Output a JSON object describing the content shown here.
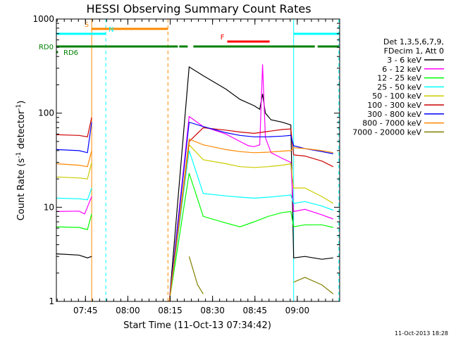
{
  "chart_data": {
    "type": "line",
    "title": "HESSI Observing Summary Count Rates",
    "xlabel": "Start Time (11-Oct-13 07:34:42)",
    "ylabel": "Count Rate (s⁻¹ detector⁻¹)",
    "ylabel_parts": [
      "Count Rate (s",
      "-1",
      " detector",
      "-1",
      ")"
    ],
    "yscale": "log",
    "xlim_minutes": [
      0,
      100.3
    ],
    "ylim": [
      1,
      1000
    ],
    "x_tick_minutes": [
      10.3,
      25.3,
      40.3,
      55.3,
      70.3,
      85.3
    ],
    "x_tick_labels": [
      "07:45",
      "08:00",
      "08:15",
      "08:30",
      "08:45",
      "09:00"
    ],
    "y_ticks": [
      1,
      10,
      100,
      1000
    ],
    "y_tick_labels": [
      "1",
      "10",
      "100",
      "1000"
    ],
    "legend": {
      "header": [
        "Det 1,3,5,6,7,9,",
        "FDecim 1, Att 0"
      ],
      "placement": "right"
    },
    "series": [
      {
        "name": "3 - 6 keV",
        "color": "#000000",
        "points": [
          [
            0,
            3.2
          ],
          [
            8,
            3.1
          ],
          [
            11,
            2.9
          ],
          [
            12.5,
            3.0
          ],
          [
            40,
            1.0
          ],
          [
            47,
            310
          ],
          [
            52,
            250
          ],
          [
            60,
            180
          ],
          [
            65,
            140
          ],
          [
            70,
            120
          ],
          [
            72,
            110
          ],
          [
            73,
            160
          ],
          [
            74,
            100
          ],
          [
            76,
            85
          ],
          [
            80,
            80
          ],
          [
            83,
            75
          ],
          [
            84,
            2.9
          ],
          [
            88,
            3.0
          ],
          [
            94,
            2.8
          ],
          [
            98,
            2.9
          ]
        ]
      },
      {
        "name": "6 - 12 keV",
        "color": "#ff00ff",
        "points": [
          [
            0,
            9
          ],
          [
            8,
            9.1
          ],
          [
            10,
            8.5
          ],
          [
            12.5,
            13
          ],
          [
            40,
            1.0
          ],
          [
            47,
            92
          ],
          [
            52,
            72
          ],
          [
            60,
            60
          ],
          [
            65,
            50
          ],
          [
            68,
            45
          ],
          [
            70,
            44
          ],
          [
            72,
            46
          ],
          [
            73,
            330
          ],
          [
            74,
            55
          ],
          [
            76,
            38
          ],
          [
            80,
            33
          ],
          [
            83,
            30
          ],
          [
            84,
            9
          ],
          [
            88,
            9.5
          ],
          [
            94,
            8.3
          ],
          [
            98,
            7.5
          ]
        ]
      },
      {
        "name": "12 - 25 keV",
        "color": "#00ff00",
        "points": [
          [
            0,
            6.2
          ],
          [
            8,
            6.1
          ],
          [
            11,
            5.8
          ],
          [
            12.5,
            8.5
          ],
          [
            40,
            1.0
          ],
          [
            47,
            23
          ],
          [
            52,
            8
          ],
          [
            60,
            6.8
          ],
          [
            65,
            6.2
          ],
          [
            70,
            7.0
          ],
          [
            75,
            8.0
          ],
          [
            80,
            8.8
          ],
          [
            83,
            9.0
          ],
          [
            84,
            6.2
          ],
          [
            88,
            6.5
          ],
          [
            94,
            6.5
          ],
          [
            98,
            6.1
          ]
        ]
      },
      {
        "name": "25 - 50 keV",
        "color": "#00ffff",
        "points": [
          [
            0,
            12.5
          ],
          [
            8,
            12.3
          ],
          [
            11,
            12
          ],
          [
            12.5,
            16
          ],
          [
            40,
            1.0
          ],
          [
            47,
            40
          ],
          [
            52,
            14
          ],
          [
            60,
            13.2
          ],
          [
            65,
            12.8
          ],
          [
            70,
            12.5
          ],
          [
            75,
            12.8
          ],
          [
            80,
            13.2
          ],
          [
            83,
            13.5
          ],
          [
            84,
            11
          ],
          [
            88,
            11.5
          ],
          [
            94,
            10.3
          ],
          [
            98,
            9.3
          ]
        ]
      },
      {
        "name": "50 - 100 keV",
        "color": "#cccc00",
        "points": [
          [
            0,
            21
          ],
          [
            8,
            20.5
          ],
          [
            11,
            20
          ],
          [
            12.5,
            30
          ],
          [
            40,
            1.0
          ],
          [
            47,
            46
          ],
          [
            52,
            32
          ],
          [
            60,
            29
          ],
          [
            65,
            27
          ],
          [
            70,
            26.5
          ],
          [
            75,
            27
          ],
          [
            80,
            28
          ],
          [
            83,
            29
          ],
          [
            84,
            16
          ],
          [
            88,
            16
          ],
          [
            94,
            13
          ],
          [
            98,
            11
          ]
        ]
      },
      {
        "name": "100 - 300 keV",
        "color": "#cc0000",
        "points": [
          [
            0,
            59
          ],
          [
            8,
            58
          ],
          [
            11,
            56
          ],
          [
            12.5,
            90
          ],
          [
            40,
            1.0
          ],
          [
            47,
            50
          ],
          [
            52,
            70
          ],
          [
            60,
            66
          ],
          [
            65,
            63
          ],
          [
            70,
            61
          ],
          [
            75,
            64
          ],
          [
            80,
            67
          ],
          [
            83,
            68
          ],
          [
            84,
            36
          ],
          [
            88,
            35
          ],
          [
            94,
            31
          ],
          [
            98,
            27
          ]
        ]
      },
      {
        "name": "300 - 800 keV",
        "color": "#0000ff",
        "points": [
          [
            0,
            41
          ],
          [
            8,
            40
          ],
          [
            11,
            38
          ],
          [
            12.5,
            80
          ],
          [
            40,
            1.0
          ],
          [
            47,
            80
          ],
          [
            52,
            72
          ],
          [
            60,
            62
          ],
          [
            65,
            58
          ],
          [
            70,
            56
          ],
          [
            75,
            56
          ],
          [
            80,
            57
          ],
          [
            83,
            58
          ],
          [
            84,
            45
          ],
          [
            88,
            42
          ],
          [
            94,
            39
          ],
          [
            98,
            37
          ]
        ]
      },
      {
        "name": "800 - 7000 keV",
        "color": "#ff8800",
        "points": [
          [
            0,
            29
          ],
          [
            8,
            28
          ],
          [
            11,
            27
          ],
          [
            12.5,
            40
          ],
          [
            40,
            1.0
          ],
          [
            47,
            53
          ],
          [
            52,
            46
          ],
          [
            60,
            41
          ],
          [
            65,
            39
          ],
          [
            70,
            38
          ],
          [
            75,
            38.5
          ],
          [
            80,
            39.5
          ],
          [
            83,
            40
          ],
          [
            84,
            43
          ],
          [
            88,
            42
          ],
          [
            94,
            40
          ],
          [
            98,
            38
          ]
        ]
      },
      {
        "name": "7000 - 20000 keV",
        "color": "#808000",
        "points": [
          [
            47,
            3.0
          ],
          [
            50,
            1.5
          ],
          [
            52,
            1.2
          ],
          [
            84,
            1.6
          ],
          [
            88,
            1.8
          ],
          [
            94,
            1.5
          ],
          [
            98,
            1.2
          ]
        ]
      }
    ],
    "flags": [
      {
        "label": "S",
        "color": "#ff8800",
        "start": 12.5,
        "end": 39.5,
        "level": 1
      },
      {
        "label": "N",
        "color": "#00ffff",
        "start": 0,
        "end": 17.5,
        "level": 2
      },
      {
        "label": "N",
        "color": "#00ffff",
        "start": 84,
        "end": 100,
        "level": 2,
        "hide_label": true
      },
      {
        "label": "F",
        "color": "#ff0000",
        "start": 60.5,
        "end": 75.5,
        "level": 3
      },
      {
        "label": "RD0",
        "color": "#008000",
        "start": 0,
        "end": 43,
        "level": 4
      },
      {
        "label": "RD0",
        "color": "#008000",
        "start": 43.5,
        "end": 46.5,
        "level": 4,
        "hide_label": true
      },
      {
        "label": "RD0",
        "color": "#008000",
        "start": 48.5,
        "end": 91.5,
        "level": 4,
        "hide_label": true
      },
      {
        "label": "RD0",
        "color": "#008000",
        "start": 92.5,
        "end": 100,
        "level": 4,
        "hide_label": true
      },
      {
        "label": "RD6",
        "color": "#008000",
        "start": 0,
        "end": 0.6,
        "level": 5
      }
    ],
    "vertical_markers": [
      {
        "x": 0,
        "color": "#00ffff",
        "style": "solid"
      },
      {
        "x": 12.5,
        "color": "#ff8800",
        "style": "solid"
      },
      {
        "x": 17.5,
        "color": "#00ffff",
        "style": "dashed"
      },
      {
        "x": 39.5,
        "color": "#ff8800",
        "style": "dashed"
      },
      {
        "x": 84,
        "color": "#00ffff",
        "style": "solid"
      },
      {
        "x": 100,
        "color": "#00ffff",
        "style": "dashed"
      }
    ],
    "grid": false
  },
  "footer": {
    "timestamp": "11-Oct-2013 18:28"
  }
}
